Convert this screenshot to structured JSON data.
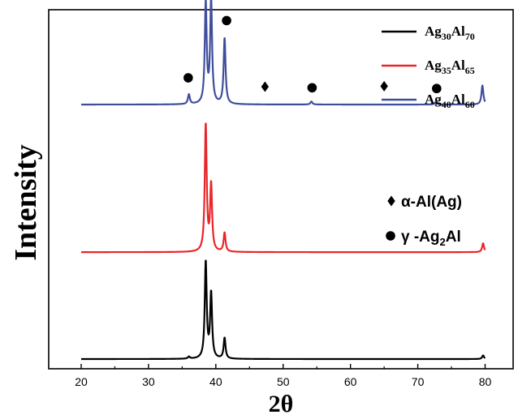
{
  "chart_data": {
    "type": "line",
    "xlabel": "2θ",
    "ylabel": "Intensity",
    "xlim": [
      15,
      82
    ],
    "x_ticks": [
      20,
      30,
      40,
      50,
      60,
      70,
      80
    ],
    "grid": false,
    "legend": {
      "position": "top-right",
      "entries": [
        {
          "base1": "Ag",
          "sub1": "30",
          "base2": "Al",
          "sub2": "70",
          "color": "#000000"
        },
        {
          "base1": "Ag",
          "sub1": "35",
          "base2": "Al",
          "sub2": "65",
          "color": "#e8262a"
        },
        {
          "base1": "Ag",
          "sub1": "40",
          "base2": "Al",
          "sub2": "60",
          "color": "#3f4e9c"
        }
      ]
    },
    "phase_legend": [
      {
        "symbol": "diamond",
        "text": "α-Al(Ag)"
      },
      {
        "symbol": "circle",
        "text_main": "γ -Ag",
        "text_sub": "2",
        "text_tail": "Al"
      }
    ],
    "series": [
      {
        "key": "ag30",
        "color": "#000000",
        "baseline": 0.0,
        "peaks": [
          {
            "x": 36.0,
            "h": 0.08
          },
          {
            "x": 38.5,
            "h": 3.8
          },
          {
            "x": 39.3,
            "h": 2.55
          },
          {
            "x": 41.3,
            "h": 0.82
          },
          {
            "x": 79.7,
            "h": 0.14
          }
        ]
      },
      {
        "key": "ag35",
        "color": "#e8262a",
        "baseline": 4.2,
        "peaks": [
          {
            "x": 38.5,
            "h": 5.0
          },
          {
            "x": 39.3,
            "h": 2.6
          },
          {
            "x": 41.3,
            "h": 0.75
          },
          {
            "x": 79.7,
            "h": 0.35
          }
        ]
      },
      {
        "key": "ag40",
        "color": "#3f4e9c",
        "baseline": 10.0,
        "peaks": [
          {
            "x": 36.0,
            "h": 0.38
          },
          {
            "x": 38.5,
            "h": 3.95
          },
          {
            "x": 39.3,
            "h": 4.1
          },
          {
            "x": 41.3,
            "h": 2.6
          },
          {
            "x": 54.2,
            "h": 0.12
          },
          {
            "x": 72.7,
            "h": 0.12
          },
          {
            "x": 79.6,
            "h": 0.75
          }
        ]
      }
    ],
    "markers": [
      {
        "symbol": "circle",
        "x": 35.9,
        "y": 11.05
      },
      {
        "symbol": "diamond",
        "x": 37.8,
        "y": 14.48
      },
      {
        "symbol": "circle",
        "x": 39.9,
        "y": 14.58
      },
      {
        "symbol": "circle",
        "x": 41.6,
        "y": 13.3
      },
      {
        "symbol": "diamond",
        "x": 47.3,
        "y": 10.7
      },
      {
        "symbol": "circle",
        "x": 54.3,
        "y": 10.66
      },
      {
        "symbol": "diamond",
        "x": 65.0,
        "y": 10.72
      },
      {
        "symbol": "circle",
        "x": 72.8,
        "y": 10.63
      }
    ]
  }
}
